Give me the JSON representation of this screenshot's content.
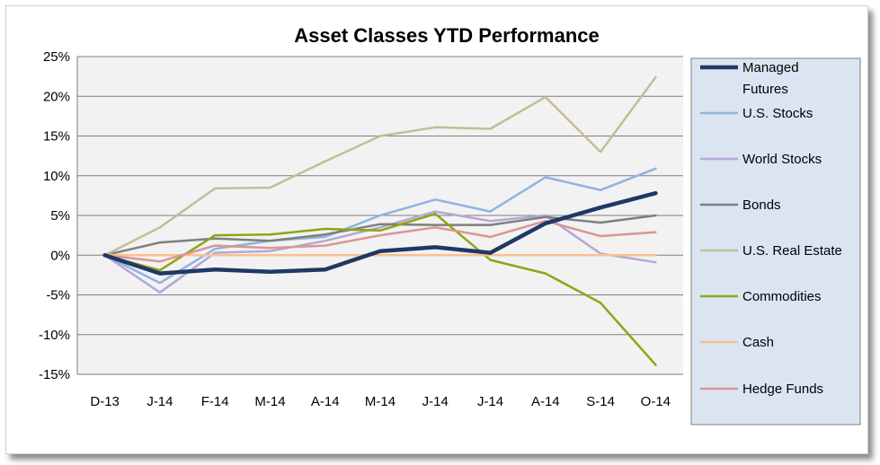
{
  "chart_data": {
    "type": "line",
    "title": "Asset Classes YTD Performance",
    "xlabel": "",
    "ylabel": "",
    "ylim": [
      -15,
      25
    ],
    "ytick_step": 5,
    "ytick_labels": [
      "25%",
      "20%",
      "15%",
      "10%",
      "5%",
      "0%",
      "-5%",
      "-10%",
      "-15%"
    ],
    "grid": true,
    "legend_position": "right",
    "categories": [
      "D-13",
      "J-14",
      "F-14",
      "M-14",
      "A-14",
      "M-14",
      "J-14",
      "J-14",
      "A-14",
      "S-14",
      "O-14"
    ],
    "series": [
      {
        "name": "Managed Futures",
        "color": "#1f3864",
        "width": 4.5,
        "values": [
          0,
          -2.3,
          -1.8,
          -2.1,
          -1.8,
          0.5,
          1.0,
          0.3,
          4.0,
          6.0,
          7.8
        ]
      },
      {
        "name": "U.S. Stocks",
        "color": "#8db3e2",
        "width": 2.5,
        "values": [
          0,
          -3.5,
          0.8,
          1.8,
          2.3,
          5.0,
          7.0,
          5.5,
          9.8,
          8.2,
          10.9
        ]
      },
      {
        "name": "World Stocks",
        "color": "#b4a7d6",
        "width": 2.5,
        "values": [
          0,
          -4.7,
          0.3,
          0.5,
          1.8,
          3.5,
          5.5,
          4.3,
          5.0,
          0.2,
          -0.9
        ]
      },
      {
        "name": "Bonds",
        "color": "#7f7f7f",
        "width": 2.5,
        "values": [
          0,
          1.6,
          2.1,
          1.8,
          2.6,
          3.9,
          3.8,
          3.8,
          4.8,
          4.1,
          5.0
        ]
      },
      {
        "name": "U.S. Real Estate",
        "color": "#c4bd97",
        "width": 2.5,
        "values": [
          0,
          3.5,
          8.4,
          8.5,
          11.8,
          15.0,
          16.1,
          15.9,
          19.9,
          13.0,
          22.4
        ]
      },
      {
        "name": "Commodities",
        "color": "#8ea614",
        "width": 2.5,
        "values": [
          0,
          -1.9,
          2.5,
          2.6,
          3.3,
          3.1,
          5.2,
          -0.6,
          -2.3,
          -6.0,
          -13.8
        ]
      },
      {
        "name": "Cash",
        "color": "#fac090",
        "width": 2.5,
        "values": [
          0,
          0,
          0,
          0,
          0,
          0,
          0,
          0,
          0,
          0,
          0
        ]
      },
      {
        "name": "Hedge Funds",
        "color": "#d99694",
        "width": 2.5,
        "values": [
          0,
          -0.8,
          1.2,
          0.9,
          1.2,
          2.5,
          3.5,
          2.3,
          4.3,
          2.4,
          2.9
        ]
      }
    ]
  },
  "colors": {
    "plot_background": "#f2f2f2",
    "gridline": "#7f7f7f",
    "legend_background": "#dbe5f1",
    "legend_border": "#7f7f7f"
  }
}
